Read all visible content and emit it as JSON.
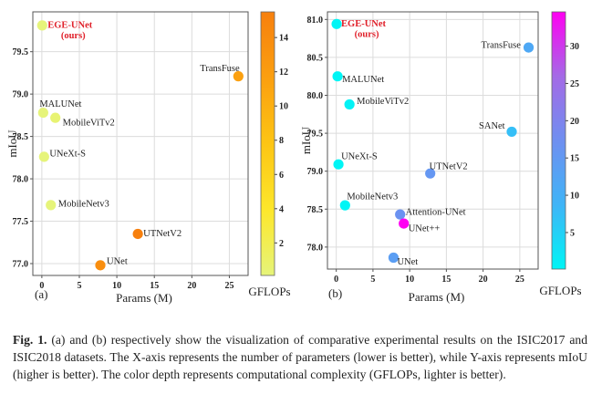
{
  "chart_data": [
    {
      "type": "scatter",
      "panel_label": "(a)",
      "dataset": "ISIC2017",
      "title": "",
      "xlabel": "Params (M)",
      "ylabel": "mIoU",
      "xlim": [
        -1.2,
        27.5
      ],
      "ylim": [
        76.86,
        79.97
      ],
      "xticks": [
        0,
        5,
        10,
        15,
        20,
        25
      ],
      "yticks": [
        77.0,
        77.5,
        78.0,
        78.5,
        79.0,
        79.5
      ],
      "ytick_labels": [
        "77.0",
        "77.5",
        "78.0",
        "78.5",
        "79.0",
        "79.5"
      ],
      "grid": true,
      "colorbar": {
        "label": "GFLOPs",
        "range": [
          0.1,
          15.5
        ],
        "ticks": [
          2,
          4,
          6,
          8,
          10,
          12,
          14
        ],
        "colors": [
          "#e6f47a",
          "#fde72b",
          "#fdc514",
          "#fb9f10",
          "#f7800e"
        ]
      },
      "points": [
        {
          "name": "EGE-UNet",
          "sub": "(ours)",
          "highlight": true,
          "params": 0.05,
          "miou": 79.81,
          "gflops": 0.07
        },
        {
          "name": "TransFuse",
          "params": 26.2,
          "miou": 79.21,
          "gflops": 11.5
        },
        {
          "name": "MALUNet",
          "params": 0.18,
          "miou": 78.78,
          "gflops": 0.08
        },
        {
          "name": "MobileViTv2",
          "params": 1.8,
          "miou": 78.72,
          "gflops": 0.5
        },
        {
          "name": "UNeXt-S",
          "params": 0.3,
          "miou": 78.26,
          "gflops": 0.1
        },
        {
          "name": "MobileNetv3",
          "params": 1.2,
          "miou": 77.69,
          "gflops": 0.1
        },
        {
          "name": "UTNetV2",
          "params": 12.8,
          "miou": 77.35,
          "gflops": 15.5
        },
        {
          "name": "UNet",
          "params": 7.8,
          "miou": 76.98,
          "gflops": 13.8
        }
      ]
    },
    {
      "type": "scatter",
      "panel_label": "(b)",
      "dataset": "ISIC2018",
      "title": "",
      "xlabel": "Params (M)",
      "ylabel": "mIoU",
      "xlim": [
        -1.2,
        27.5
      ],
      "ylim": [
        77.71,
        81.1
      ],
      "xticks": [
        0,
        5,
        10,
        15,
        20,
        25
      ],
      "yticks": [
        78.0,
        78.5,
        79.0,
        79.5,
        80.0,
        80.5,
        81.0
      ],
      "ytick_labels": [
        "78.0",
        "78.5",
        "79.0",
        "79.5",
        "80.0",
        "80.5",
        "81.0"
      ],
      "grid": true,
      "colorbar": {
        "label": "GFLOPs",
        "range": [
          0.1,
          34.6
        ],
        "ticks": [
          5,
          10,
          15,
          20,
          25,
          30
        ],
        "colors": [
          "#00f5f5",
          "#3fb4f7",
          "#6f8ff0",
          "#a46ae6",
          "#ff00f2"
        ]
      },
      "points": [
        {
          "name": "EGE-UNet",
          "sub": "(ours)",
          "highlight": true,
          "params": 0.05,
          "miou": 80.94,
          "gflops": 0.07
        },
        {
          "name": "TransFuse",
          "params": 26.2,
          "miou": 80.63,
          "gflops": 11.5
        },
        {
          "name": "MALUNet",
          "params": 0.18,
          "miou": 80.25,
          "gflops": 0.08
        },
        {
          "name": "MobileViTv2",
          "params": 1.8,
          "miou": 79.88,
          "gflops": 0.5
        },
        {
          "name": "SANet",
          "params": 23.9,
          "miou": 79.52,
          "gflops": 7.3
        },
        {
          "name": "UNeXt-S",
          "params": 0.3,
          "miou": 79.09,
          "gflops": 0.1
        },
        {
          "name": "UTNetV2",
          "params": 12.8,
          "miou": 78.97,
          "gflops": 15.5
        },
        {
          "name": "MobileNetv3",
          "params": 1.2,
          "miou": 78.55,
          "gflops": 0.1
        },
        {
          "name": "Attention-UNet",
          "params": 8.7,
          "miou": 78.43,
          "gflops": 16.7
        },
        {
          "name": "UNet++",
          "params": 9.2,
          "miou": 78.31,
          "gflops": 34.6
        },
        {
          "name": "UNet",
          "params": 7.8,
          "miou": 77.86,
          "gflops": 13.8
        }
      ]
    }
  ],
  "caption": {
    "fig_number": "Fig. 1.",
    "text": "(a) and (b) respectively show the visualization of comparative experimental results on the ISIC2017 and ISIC2018 datasets. The X-axis represents the number of parameters (lower is better), while Y-axis represents mIoU (higher is better). The color depth represents computational complexity (GFLOPs, lighter is better)."
  }
}
